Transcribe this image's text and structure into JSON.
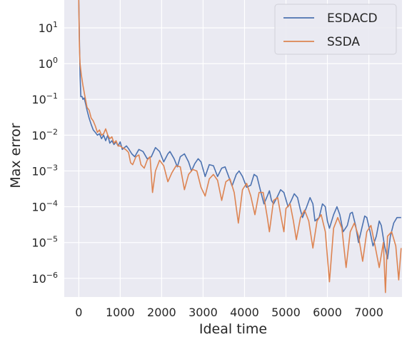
{
  "chart_data": {
    "type": "line",
    "title": "",
    "xlabel": "Ideal time",
    "ylabel": "Max error",
    "yscale": "log",
    "xlim": [
      -350,
      7800
    ],
    "ylim": [
      3e-07,
      60
    ],
    "grid": true,
    "background": "#EAEAF2",
    "legend_position": "top-right",
    "x_ticks": [
      0,
      1000,
      2000,
      3000,
      4000,
      5000,
      6000,
      7000
    ],
    "x_tick_labels": [
      "0",
      "1000",
      "2000",
      "3000",
      "4000",
      "5000",
      "6000",
      "7000"
    ],
    "y_ticks": [
      {
        "value": 10,
        "base": "10",
        "exp": "1"
      },
      {
        "value": 1,
        "base": "10",
        "exp": "0"
      },
      {
        "value": 0.1,
        "base": "10",
        "exp": "−1"
      },
      {
        "value": 0.01,
        "base": "10",
        "exp": "−2"
      },
      {
        "value": 0.001,
        "base": "10",
        "exp": "−3"
      },
      {
        "value": 0.0001,
        "base": "10",
        "exp": "−4"
      },
      {
        "value": 1e-05,
        "base": "10",
        "exp": "−5"
      },
      {
        "value": 1e-06,
        "base": "10",
        "exp": "−6"
      }
    ],
    "series": [
      {
        "name": "ESDACD",
        "color": "#4C72B0",
        "points": [
          [
            0,
            60
          ],
          [
            15,
            5
          ],
          [
            30,
            0.5
          ],
          [
            50,
            0.12
          ],
          [
            80,
            0.12
          ],
          [
            100,
            0.1
          ],
          [
            130,
            0.11
          ],
          [
            160,
            0.08
          ],
          [
            200,
            0.05
          ],
          [
            250,
            0.03
          ],
          [
            300,
            0.02
          ],
          [
            350,
            0.014
          ],
          [
            400,
            0.012
          ],
          [
            450,
            0.01
          ],
          [
            500,
            0.011
          ],
          [
            550,
            0.008
          ],
          [
            600,
            0.01
          ],
          [
            650,
            0.007
          ],
          [
            700,
            0.01
          ],
          [
            750,
            0.006
          ],
          [
            800,
            0.007
          ],
          [
            850,
            0.0055
          ],
          [
            900,
            0.0065
          ],
          [
            950,
            0.005
          ],
          [
            1000,
            0.0065
          ],
          [
            1050,
            0.004
          ],
          [
            1100,
            0.0045
          ],
          [
            1150,
            0.005
          ],
          [
            1200,
            0.0042
          ],
          [
            1280,
            0.003
          ],
          [
            1350,
            0.0025
          ],
          [
            1450,
            0.004
          ],
          [
            1550,
            0.0035
          ],
          [
            1650,
            0.0022
          ],
          [
            1750,
            0.0025
          ],
          [
            1850,
            0.0045
          ],
          [
            1950,
            0.0035
          ],
          [
            2050,
            0.0018
          ],
          [
            2150,
            0.003
          ],
          [
            2200,
            0.0035
          ],
          [
            2300,
            0.0022
          ],
          [
            2380,
            0.0013
          ],
          [
            2450,
            0.0025
          ],
          [
            2550,
            0.003
          ],
          [
            2650,
            0.0018
          ],
          [
            2720,
            0.001
          ],
          [
            2800,
            0.0016
          ],
          [
            2880,
            0.0022
          ],
          [
            2950,
            0.0018
          ],
          [
            3050,
            0.0007
          ],
          [
            3150,
            0.0015
          ],
          [
            3250,
            0.0014
          ],
          [
            3350,
            0.0007
          ],
          [
            3450,
            0.0012
          ],
          [
            3530,
            0.0013
          ],
          [
            3600,
            0.0008
          ],
          [
            3700,
            0.00038
          ],
          [
            3800,
            0.0008
          ],
          [
            3870,
            0.001
          ],
          [
            3950,
            0.0007
          ],
          [
            4050,
            0.00035
          ],
          [
            4150,
            0.0004
          ],
          [
            4230,
            0.0008
          ],
          [
            4300,
            0.0007
          ],
          [
            4380,
            0.0003
          ],
          [
            4470,
            0.00012
          ],
          [
            4550,
            0.0002
          ],
          [
            4600,
            0.00028
          ],
          [
            4650,
            0.00015
          ],
          [
            4700,
            0.00012
          ],
          [
            4800,
            0.0002
          ],
          [
            4870,
            0.0003
          ],
          [
            4950,
            0.00025
          ],
          [
            5050,
            0.0001
          ],
          [
            5130,
            0.00015
          ],
          [
            5200,
            0.00023
          ],
          [
            5280,
            0.00018
          ],
          [
            5350,
            8e-05
          ],
          [
            5400,
            5e-05
          ],
          [
            5500,
            0.0001
          ],
          [
            5580,
            0.00018
          ],
          [
            5650,
            0.00012
          ],
          [
            5700,
            4e-05
          ],
          [
            5800,
            5e-05
          ],
          [
            5880,
            0.00012
          ],
          [
            5950,
            0.0001
          ],
          [
            6000,
            4e-05
          ],
          [
            6050,
            2.5e-05
          ],
          [
            6150,
            6e-05
          ],
          [
            6230,
            0.0001
          ],
          [
            6300,
            6e-05
          ],
          [
            6380,
            2e-05
          ],
          [
            6480,
            3e-05
          ],
          [
            6550,
            6.5e-05
          ],
          [
            6600,
            7e-05
          ],
          [
            6680,
            3e-05
          ],
          [
            6750,
            1e-05
          ],
          [
            6830,
            2.5e-05
          ],
          [
            6900,
            5.5e-05
          ],
          [
            6950,
            5e-05
          ],
          [
            7030,
            2e-05
          ],
          [
            7100,
            8e-06
          ],
          [
            7180,
            1.5e-05
          ],
          [
            7250,
            4e-05
          ],
          [
            7300,
            3e-05
          ],
          [
            7380,
            8e-06
          ],
          [
            7450,
            3.5e-06
          ],
          [
            7520,
            1.5e-05
          ],
          [
            7600,
            3.5e-05
          ],
          [
            7680,
            5e-05
          ],
          [
            7780,
            5e-05
          ]
        ]
      },
      {
        "name": "SSDA",
        "color": "#DD8452",
        "points": [
          [
            0,
            60
          ],
          [
            15,
            3
          ],
          [
            30,
            1
          ],
          [
            60,
            0.5
          ],
          [
            100,
            0.25
          ],
          [
            150,
            0.12
          ],
          [
            200,
            0.06
          ],
          [
            250,
            0.05
          ],
          [
            300,
            0.03
          ],
          [
            350,
            0.025
          ],
          [
            400,
            0.018
          ],
          [
            450,
            0.012
          ],
          [
            500,
            0.014
          ],
          [
            550,
            0.01
          ],
          [
            600,
            0.011
          ],
          [
            650,
            0.015
          ],
          [
            700,
            0.01
          ],
          [
            750,
            0.008
          ],
          [
            800,
            0.009
          ],
          [
            850,
            0.006
          ],
          [
            900,
            0.007
          ],
          [
            950,
            0.005
          ],
          [
            1000,
            0.005
          ],
          [
            1050,
            0.0045
          ],
          [
            1100,
            0.0042
          ],
          [
            1150,
            0.0038
          ],
          [
            1200,
            0.0033
          ],
          [
            1250,
            0.0017
          ],
          [
            1300,
            0.0015
          ],
          [
            1380,
            0.0025
          ],
          [
            1450,
            0.0028
          ],
          [
            1500,
            0.0015
          ],
          [
            1580,
            0.0012
          ],
          [
            1650,
            0.002
          ],
          [
            1720,
            0.0025
          ],
          [
            1780,
            0.00025
          ],
          [
            1850,
            0.001
          ],
          [
            1950,
            0.002
          ],
          [
            2050,
            0.0014
          ],
          [
            2150,
            0.0005
          ],
          [
            2250,
            0.0009
          ],
          [
            2350,
            0.0014
          ],
          [
            2450,
            0.0013
          ],
          [
            2550,
            0.0003
          ],
          [
            2650,
            0.0008
          ],
          [
            2750,
            0.0011
          ],
          [
            2850,
            0.001
          ],
          [
            2950,
            0.00035
          ],
          [
            3050,
            0.0002
          ],
          [
            3150,
            0.0006
          ],
          [
            3250,
            0.0008
          ],
          [
            3350,
            0.00055
          ],
          [
            3450,
            0.00015
          ],
          [
            3550,
            0.0005
          ],
          [
            3650,
            0.0006
          ],
          [
            3750,
            0.00025
          ],
          [
            3850,
            3.5e-05
          ],
          [
            3950,
            0.0003
          ],
          [
            4050,
            0.00045
          ],
          [
            4150,
            0.0002
          ],
          [
            4250,
            6e-05
          ],
          [
            4350,
            0.00025
          ],
          [
            4450,
            0.00025
          ],
          [
            4550,
            5e-05
          ],
          [
            4600,
            2e-05
          ],
          [
            4700,
            0.00015
          ],
          [
            4800,
            0.00018
          ],
          [
            4900,
            4e-05
          ],
          [
            4950,
            2e-05
          ],
          [
            5000,
            9e-05
          ],
          [
            5100,
            0.00012
          ],
          [
            5180,
            4e-05
          ],
          [
            5250,
            1.2e-05
          ],
          [
            5350,
            5e-05
          ],
          [
            5450,
            8e-05
          ],
          [
            5550,
            4e-05
          ],
          [
            5650,
            7e-06
          ],
          [
            5750,
            4e-05
          ],
          [
            5850,
            6e-05
          ],
          [
            5950,
            2e-05
          ],
          [
            6050,
            8e-07
          ],
          [
            6150,
            2.5e-05
          ],
          [
            6250,
            5e-05
          ],
          [
            6350,
            2.5e-05
          ],
          [
            6450,
            2e-06
          ],
          [
            6550,
            2e-05
          ],
          [
            6650,
            3.5e-05
          ],
          [
            6750,
            1.5e-05
          ],
          [
            6850,
            3e-06
          ],
          [
            6950,
            2e-05
          ],
          [
            7050,
            3e-05
          ],
          [
            7150,
            8e-06
          ],
          [
            7250,
            2e-06
          ],
          [
            7350,
            1e-05
          ],
          [
            7400,
            4e-07
          ],
          [
            7450,
            1.5e-05
          ],
          [
            7550,
            2e-05
          ],
          [
            7650,
            8e-06
          ],
          [
            7720,
            9e-07
          ],
          [
            7780,
            7e-06
          ]
        ]
      }
    ]
  }
}
